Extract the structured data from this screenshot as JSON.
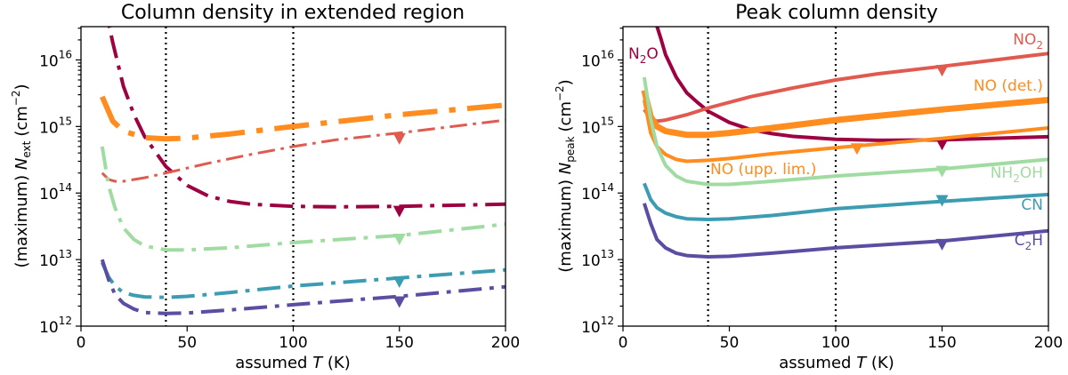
{
  "chart_data": [
    {
      "type": "line",
      "title": "Column density in extended region",
      "xlabel": "assumed T (K)",
      "ylabel": "(maximum) N_ext (cm^-2)",
      "ylabel_prefix": "(maximum) ",
      "ylabel_sym": "N",
      "ylabel_sub": "ext",
      "ylabel_unit": "(cm",
      "ylabel_unit_sup": "−2",
      "xlabel_prefix": "assumed ",
      "xlabel_sym": "T",
      "xlabel_unit": " (K)",
      "xlim": [
        0,
        200
      ],
      "ylim_exp": [
        12,
        16.5
      ],
      "x_ticks": [
        0,
        50,
        100,
        150,
        200
      ],
      "y_tick_exps": [
        12,
        13,
        14,
        15,
        16
      ],
      "y_tick_base": "10",
      "vlines": [
        40,
        100
      ],
      "line_style": "dashdot",
      "series": [
        {
          "name": "N2O",
          "color": "#9e0142",
          "width": 4,
          "marker_x": 150,
          "marker_y": 55000000000000.0,
          "x": [
            10,
            15,
            20,
            25,
            30,
            40,
            50,
            60,
            70,
            80,
            100,
            120,
            150,
            200
          ],
          "y": [
            1e+17,
            1.8e+16,
            4000000000000000.0,
            1500000000000000.0,
            700000000000000.0,
            250000000000000.0,
            130000000000000.0,
            90000000000000.0,
            75000000000000.0,
            68000000000000.0,
            63000000000000.0,
            62000000000000.0,
            63000000000000.0,
            68000000000000.0
          ]
        },
        {
          "name": "NO2",
          "color": "#e05a4f",
          "width": 3,
          "marker_x": 150,
          "marker_y": 680000000000000.0,
          "x": [
            10,
            13,
            16,
            20,
            30,
            40,
            60,
            80,
            100,
            120,
            150,
            200
          ],
          "y": [
            200000000000000.0,
            160000000000000.0,
            150000000000000.0,
            150000000000000.0,
            170000000000000.0,
            200000000000000.0,
            280000000000000.0,
            380000000000000.0,
            500000000000000.0,
            630000000000000.0,
            800000000000000.0,
            1250000000000000.0
          ]
        },
        {
          "name": "NO",
          "color": "#fe8c1e",
          "width": 6,
          "marker_x": null,
          "marker_y": null,
          "x": [
            10,
            15,
            20,
            30,
            40,
            50,
            70,
            100,
            150,
            200
          ],
          "y": [
            2800000000000000.0,
            1200000000000000.0,
            850000000000000.0,
            680000000000000.0,
            650000000000000.0,
            670000000000000.0,
            770000000000000.0,
            1000000000000000.0,
            1500000000000000.0,
            2100000000000000.0
          ]
        },
        {
          "name": "NH2OH",
          "color": "#a0dba2",
          "width": 4,
          "marker_x": 150,
          "marker_y": 21000000000000.0,
          "x": [
            10,
            13,
            16,
            20,
            25,
            30,
            40,
            50,
            70,
            100,
            150,
            200
          ],
          "y": [
            500000000000000.0,
            130000000000000.0,
            60000000000000.0,
            30000000000000.0,
            20000000000000.0,
            16000000000000.0,
            14000000000000.0,
            14000000000000.0,
            15000000000000.0,
            18000000000000.0,
            23000000000000.0,
            34000000000000.0
          ]
        },
        {
          "name": "CN",
          "color": "#3c9cb2",
          "width": 4,
          "marker_x": 150,
          "marker_y": 4800000000000.0,
          "x": [
            10,
            13,
            16,
            20,
            25,
            30,
            40,
            50,
            70,
            100,
            150,
            200
          ],
          "y": [
            9000000000000.0,
            5500000000000.0,
            4000000000000.0,
            3200000000000.0,
            2900000000000.0,
            2750000000000.0,
            2700000000000.0,
            2800000000000.0,
            3200000000000.0,
            4000000000000.0,
            5300000000000.0,
            7000000000000.0
          ]
        },
        {
          "name": "C2H",
          "color": "#5a4ea3",
          "width": 4,
          "marker_x": 150,
          "marker_y": 2400000000000.0,
          "x": [
            10,
            13,
            16,
            20,
            25,
            30,
            40,
            50,
            70,
            100,
            150,
            200
          ],
          "y": [
            10000000000000.0,
            5000000000000.0,
            3000000000000.0,
            2200000000000.0,
            1800000000000.0,
            1600000000000.0,
            1550000000000.0,
            1570000000000.0,
            1750000000000.0,
            2100000000000.0,
            2800000000000.0,
            3900000000000.0
          ]
        }
      ]
    },
    {
      "type": "line",
      "title": "Peak column density",
      "xlabel": "assumed T (K)",
      "ylabel": "(maximum) N_peak (cm^-2)",
      "ylabel_prefix": "(maximum) ",
      "ylabel_sym": "N",
      "ylabel_sub": "peak",
      "ylabel_unit": "(cm",
      "ylabel_unit_sup": "−2",
      "xlabel_prefix": "assumed ",
      "xlabel_sym": "T",
      "xlabel_unit": " (K)",
      "xlim": [
        0,
        200
      ],
      "ylim_exp": [
        12,
        16.5
      ],
      "x_ticks": [
        0,
        50,
        100,
        150,
        200
      ],
      "y_tick_exps": [
        12,
        13,
        14,
        15,
        16
      ],
      "y_tick_base": "10",
      "vlines": [
        40,
        100
      ],
      "line_style": "solid",
      "series": [
        {
          "name": "N2O",
          "label_main": "N",
          "label_sub": "2",
          "label_tail": "O",
          "color": "#9e0142",
          "width": 4,
          "marker_x": 150,
          "marker_y": 560000000000000.0,
          "x": [
            15,
            18,
            20,
            25,
            30,
            35,
            40,
            50,
            60,
            70,
            80,
            100,
            120,
            150,
            200
          ],
          "y": [
            4e+16,
            2e+16,
            1.2e+16,
            5500000000000000.0,
            3200000000000000.0,
            2300000000000000.0,
            1700000000000000.0,
            1150000000000000.0,
            900000000000000.0,
            780000000000000.0,
            710000000000000.0,
            640000000000000.0,
            620000000000000.0,
            630000000000000.0,
            700000000000000.0
          ]
        },
        {
          "name": "NO2",
          "label_main": "NO",
          "label_sub": "2",
          "label_tail": "",
          "color": "#e05a4f",
          "width": 4,
          "marker_x": 150,
          "marker_y": 7200000000000000.0,
          "x": [
            10,
            13,
            16,
            20,
            30,
            40,
            60,
            80,
            100,
            120,
            150,
            200
          ],
          "y": [
            1800000000000000.0,
            1300000000000000.0,
            1200000000000000.0,
            1250000000000000.0,
            1500000000000000.0,
            1900000000000000.0,
            2800000000000000.0,
            3800000000000000.0,
            5000000000000000.0,
            6200000000000000.0,
            8000000000000000.0,
            1.25e+16
          ]
        },
        {
          "name": "NO (det.)",
          "label_main": "NO (det.)",
          "label_sub": "",
          "label_tail": "",
          "color": "#fe8c1e",
          "width": 7,
          "marker_x": null,
          "marker_y": null,
          "x": [
            10,
            13,
            16,
            20,
            30,
            40,
            50,
            70,
            100,
            150,
            200
          ],
          "y": [
            3500000000000000.0,
            1400000000000000.0,
            1000000000000000.0,
            850000000000000.0,
            750000000000000.0,
            750000000000000.0,
            800000000000000.0,
            950000000000000.0,
            1250000000000000.0,
            1800000000000000.0,
            2500000000000000.0
          ]
        },
        {
          "name": "NO (upp. lim.)",
          "label_main": "NO (upp. lim.)",
          "label_sub": "",
          "label_tail": "",
          "color": "#fe8c1e",
          "width": 4,
          "marker_x": 110,
          "marker_y": 480000000000000.0,
          "x": [
            10,
            13,
            16,
            20,
            25,
            30,
            40,
            50,
            70,
            100,
            150,
            200
          ],
          "y": [
            2500000000000000.0,
            800000000000000.0,
            500000000000000.0,
            380000000000000.0,
            320000000000000.0,
            300000000000000.0,
            310000000000000.0,
            330000000000000.0,
            390000000000000.0,
            480000000000000.0,
            660000000000000.0,
            950000000000000.0
          ]
        },
        {
          "name": "NH2OH",
          "label_main": "NH",
          "label_sub": "2",
          "label_tail": "OH",
          "color": "#a0dba2",
          "width": 4,
          "marker_x": 150,
          "marker_y": 220000000000000.0,
          "x": [
            10,
            13,
            16,
            20,
            25,
            30,
            40,
            50,
            70,
            100,
            150,
            200
          ],
          "y": [
            5500000000000000.0,
            1300000000000000.0,
            500000000000000.0,
            260000000000000.0,
            180000000000000.0,
            150000000000000.0,
            135000000000000.0,
            135000000000000.0,
            150000000000000.0,
            180000000000000.0,
            230000000000000.0,
            320000000000000.0
          ]
        },
        {
          "name": "CN",
          "label_main": "CN",
          "label_sub": "",
          "label_tail": "",
          "color": "#3c9cb2",
          "width": 4,
          "marker_x": 150,
          "marker_y": 80000000000000.0,
          "x": [
            10,
            13,
            16,
            20,
            25,
            30,
            40,
            50,
            70,
            100,
            150,
            200
          ],
          "y": [
            140000000000000.0,
            80000000000000.0,
            60000000000000.0,
            50000000000000.0,
            44000000000000.0,
            41000000000000.0,
            40000000000000.0,
            41000000000000.0,
            46000000000000.0,
            58000000000000.0,
            75000000000000.0,
            95000000000000.0
          ]
        },
        {
          "name": "C2H",
          "label_main": "C",
          "label_sub": "2",
          "label_tail": "H",
          "color": "#5a4ea3",
          "width": 4,
          "marker_x": 150,
          "marker_y": 17500000000000.0,
          "x": [
            10,
            13,
            16,
            20,
            25,
            30,
            40,
            50,
            70,
            100,
            150,
            200
          ],
          "y": [
            70000000000000.0,
            35000000000000.0,
            20000000000000.0,
            15000000000000.0,
            12500000000000.0,
            11500000000000.0,
            11000000000000.0,
            11200000000000.0,
            12500000000000.0,
            15000000000000.0,
            19000000000000.0,
            27000000000000.0
          ]
        }
      ]
    }
  ]
}
